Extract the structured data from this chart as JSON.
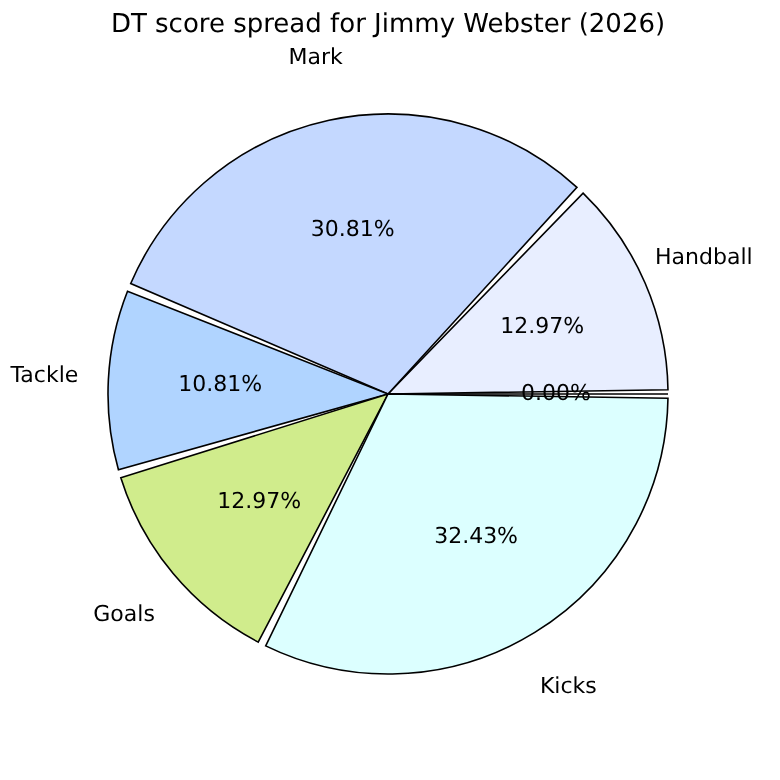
{
  "chart_data": {
    "type": "pie",
    "title": "DT score spread for Jimmy Webster (2026)",
    "categories": [
      "Handball",
      "Mark",
      "Tackle",
      "Goals",
      "Kicks",
      null
    ],
    "values": [
      12.97,
      30.81,
      10.81,
      12.97,
      32.43,
      0
    ],
    "colors": [
      "#e8eeff",
      "#c4d8ff",
      "#b0d4ff",
      "#d0ec8c",
      "#dcffff",
      "#f0f0f0"
    ],
    "value_labels": [
      "12.97%",
      "30.81%",
      "10.81%",
      "12.97%",
      "32.43%",
      "0.00%"
    ],
    "legend": false
  }
}
